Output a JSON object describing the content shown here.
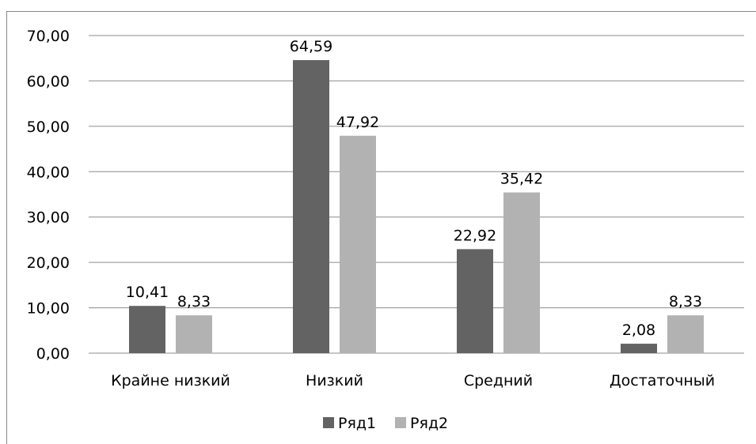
{
  "chart_data": {
    "type": "bar",
    "categories": [
      "Крайне низкий",
      "Низкий",
      "Средний",
      "Достаточный"
    ],
    "series": [
      {
        "name": "Ряд1",
        "values": [
          10.41,
          64.59,
          22.92,
          2.08
        ],
        "labels": [
          "10,41",
          "64,59",
          "22,92",
          "2,08"
        ],
        "color": "#636363"
      },
      {
        "name": "Ряд2",
        "values": [
          8.33,
          47.92,
          35.42,
          8.33
        ],
        "labels": [
          "8,33",
          "47,92",
          "35,42",
          "8,33"
        ],
        "color": "#b2b2b2"
      }
    ],
    "y_ticks": [
      "0,00",
      "10,00",
      "20,00",
      "30,00",
      "40,00",
      "50,00",
      "60,00",
      "70,00"
    ],
    "ylim": [
      0,
      70
    ],
    "grid": true,
    "legend_position": "bottom",
    "title": "",
    "xlabel": "",
    "ylabel": ""
  }
}
